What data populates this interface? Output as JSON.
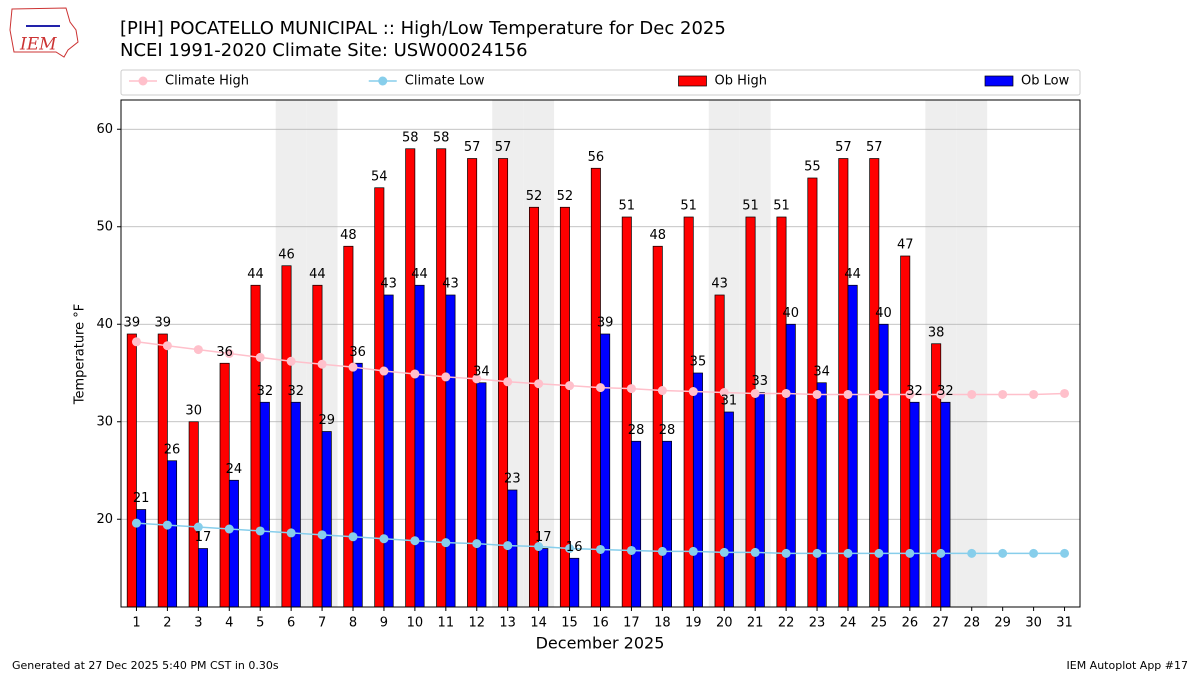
{
  "chart_data": {
    "type": "bar_line",
    "title": "[PIH] POCATELLO MUNICIPAL :: High/Low Temperature for Dec 2025",
    "subtitle": "NCEI 1991-2020 Climate Site: USW00024156",
    "x_label": "December 2025",
    "y_label": "Temperature °F",
    "footer_left": "Generated at 27 Dec 2025 5:40 PM CST in 0.30s",
    "footer_right": "IEM Autoplot App #17",
    "logo_text": "IEM",
    "legend": "top",
    "grid": true,
    "shaded": [
      6,
      7,
      13,
      14,
      20,
      21,
      27,
      28
    ],
    "shade_color": "#eeeeee",
    "categories": [
      1,
      2,
      3,
      4,
      5,
      6,
      7,
      8,
      9,
      10,
      11,
      12,
      13,
      14,
      15,
      16,
      17,
      18,
      19,
      20,
      21,
      22,
      23,
      24,
      25,
      26,
      27,
      28,
      29,
      30,
      31
    ],
    "ylim": [
      11,
      63
    ],
    "yticks": [
      20,
      30,
      40,
      50,
      60
    ],
    "series": [
      {
        "name": "Climate High",
        "kind": "line",
        "color": "#ffc0cb",
        "values": [
          38.2,
          37.8,
          37.4,
          37.0,
          36.6,
          36.2,
          35.9,
          35.6,
          35.2,
          34.9,
          34.6,
          34.4,
          34.1,
          33.9,
          33.7,
          33.5,
          33.4,
          33.2,
          33.1,
          33.0,
          32.9,
          32.9,
          32.8,
          32.8,
          32.8,
          32.8,
          32.8,
          32.8,
          32.8,
          32.8,
          32.9
        ]
      },
      {
        "name": "Climate Low",
        "kind": "line",
        "color": "#87ceeb",
        "values": [
          19.6,
          19.4,
          19.2,
          19.0,
          18.8,
          18.6,
          18.4,
          18.2,
          18.0,
          17.8,
          17.6,
          17.5,
          17.3,
          17.2,
          17.0,
          16.9,
          16.8,
          16.7,
          16.7,
          16.6,
          16.6,
          16.5,
          16.5,
          16.5,
          16.5,
          16.5,
          16.5,
          16.5,
          16.5,
          16.5,
          16.5
        ]
      },
      {
        "name": "Ob High",
        "kind": "bar",
        "color": "#ff0000",
        "values": [
          39,
          39,
          30,
          36,
          44,
          46,
          44,
          48,
          54,
          58,
          58,
          57,
          57,
          52,
          52,
          56,
          51,
          48,
          51,
          43,
          51,
          51,
          55,
          57,
          57,
          47,
          38,
          null,
          null,
          null,
          null
        ]
      },
      {
        "name": "Ob Low",
        "kind": "bar",
        "color": "#0000ff",
        "values": [
          21,
          26,
          17,
          24,
          32,
          32,
          29,
          36,
          43,
          44,
          43,
          34,
          23,
          17,
          16,
          39,
          28,
          28,
          35,
          31,
          33,
          40,
          34,
          44,
          40,
          32,
          32,
          null,
          null,
          null,
          null
        ]
      }
    ]
  }
}
